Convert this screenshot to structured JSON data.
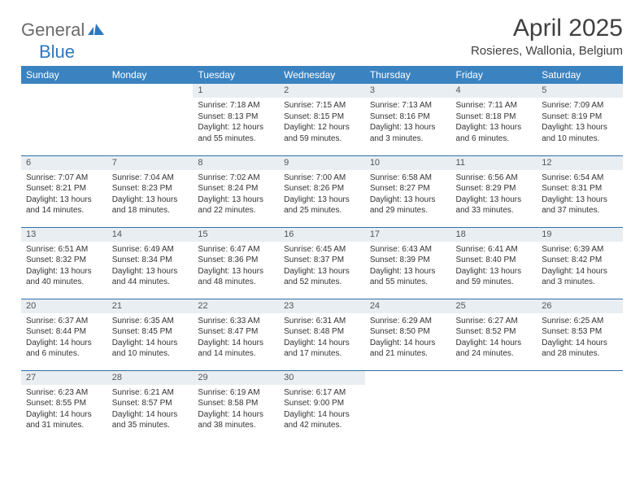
{
  "brand": {
    "part1": "General",
    "part2": "Blue"
  },
  "title": "April 2025",
  "location": "Rosieres, Wallonia, Belgium",
  "colors": {
    "header_bg": "#3b83c0",
    "header_text": "#ffffff",
    "daynum_bg": "#e9eef2",
    "row_border": "#2f6fa6",
    "brand_gray": "#6b6b6b",
    "brand_blue": "#2f78bd"
  },
  "day_headers": [
    "Sunday",
    "Monday",
    "Tuesday",
    "Wednesday",
    "Thursday",
    "Friday",
    "Saturday"
  ],
  "weeks": [
    [
      {
        "n": "",
        "lines": []
      },
      {
        "n": "",
        "lines": []
      },
      {
        "n": "1",
        "lines": [
          "Sunrise: 7:18 AM",
          "Sunset: 8:13 PM",
          "Daylight: 12 hours",
          "and 55 minutes."
        ]
      },
      {
        "n": "2",
        "lines": [
          "Sunrise: 7:15 AM",
          "Sunset: 8:15 PM",
          "Daylight: 12 hours",
          "and 59 minutes."
        ]
      },
      {
        "n": "3",
        "lines": [
          "Sunrise: 7:13 AM",
          "Sunset: 8:16 PM",
          "Daylight: 13 hours",
          "and 3 minutes."
        ]
      },
      {
        "n": "4",
        "lines": [
          "Sunrise: 7:11 AM",
          "Sunset: 8:18 PM",
          "Daylight: 13 hours",
          "and 6 minutes."
        ]
      },
      {
        "n": "5",
        "lines": [
          "Sunrise: 7:09 AM",
          "Sunset: 8:19 PM",
          "Daylight: 13 hours",
          "and 10 minutes."
        ]
      }
    ],
    [
      {
        "n": "6",
        "lines": [
          "Sunrise: 7:07 AM",
          "Sunset: 8:21 PM",
          "Daylight: 13 hours",
          "and 14 minutes."
        ]
      },
      {
        "n": "7",
        "lines": [
          "Sunrise: 7:04 AM",
          "Sunset: 8:23 PM",
          "Daylight: 13 hours",
          "and 18 minutes."
        ]
      },
      {
        "n": "8",
        "lines": [
          "Sunrise: 7:02 AM",
          "Sunset: 8:24 PM",
          "Daylight: 13 hours",
          "and 22 minutes."
        ]
      },
      {
        "n": "9",
        "lines": [
          "Sunrise: 7:00 AM",
          "Sunset: 8:26 PM",
          "Daylight: 13 hours",
          "and 25 minutes."
        ]
      },
      {
        "n": "10",
        "lines": [
          "Sunrise: 6:58 AM",
          "Sunset: 8:27 PM",
          "Daylight: 13 hours",
          "and 29 minutes."
        ]
      },
      {
        "n": "11",
        "lines": [
          "Sunrise: 6:56 AM",
          "Sunset: 8:29 PM",
          "Daylight: 13 hours",
          "and 33 minutes."
        ]
      },
      {
        "n": "12",
        "lines": [
          "Sunrise: 6:54 AM",
          "Sunset: 8:31 PM",
          "Daylight: 13 hours",
          "and 37 minutes."
        ]
      }
    ],
    [
      {
        "n": "13",
        "lines": [
          "Sunrise: 6:51 AM",
          "Sunset: 8:32 PM",
          "Daylight: 13 hours",
          "and 40 minutes."
        ]
      },
      {
        "n": "14",
        "lines": [
          "Sunrise: 6:49 AM",
          "Sunset: 8:34 PM",
          "Daylight: 13 hours",
          "and 44 minutes."
        ]
      },
      {
        "n": "15",
        "lines": [
          "Sunrise: 6:47 AM",
          "Sunset: 8:36 PM",
          "Daylight: 13 hours",
          "and 48 minutes."
        ]
      },
      {
        "n": "16",
        "lines": [
          "Sunrise: 6:45 AM",
          "Sunset: 8:37 PM",
          "Daylight: 13 hours",
          "and 52 minutes."
        ]
      },
      {
        "n": "17",
        "lines": [
          "Sunrise: 6:43 AM",
          "Sunset: 8:39 PM",
          "Daylight: 13 hours",
          "and 55 minutes."
        ]
      },
      {
        "n": "18",
        "lines": [
          "Sunrise: 6:41 AM",
          "Sunset: 8:40 PM",
          "Daylight: 13 hours",
          "and 59 minutes."
        ]
      },
      {
        "n": "19",
        "lines": [
          "Sunrise: 6:39 AM",
          "Sunset: 8:42 PM",
          "Daylight: 14 hours",
          "and 3 minutes."
        ]
      }
    ],
    [
      {
        "n": "20",
        "lines": [
          "Sunrise: 6:37 AM",
          "Sunset: 8:44 PM",
          "Daylight: 14 hours",
          "and 6 minutes."
        ]
      },
      {
        "n": "21",
        "lines": [
          "Sunrise: 6:35 AM",
          "Sunset: 8:45 PM",
          "Daylight: 14 hours",
          "and 10 minutes."
        ]
      },
      {
        "n": "22",
        "lines": [
          "Sunrise: 6:33 AM",
          "Sunset: 8:47 PM",
          "Daylight: 14 hours",
          "and 14 minutes."
        ]
      },
      {
        "n": "23",
        "lines": [
          "Sunrise: 6:31 AM",
          "Sunset: 8:48 PM",
          "Daylight: 14 hours",
          "and 17 minutes."
        ]
      },
      {
        "n": "24",
        "lines": [
          "Sunrise: 6:29 AM",
          "Sunset: 8:50 PM",
          "Daylight: 14 hours",
          "and 21 minutes."
        ]
      },
      {
        "n": "25",
        "lines": [
          "Sunrise: 6:27 AM",
          "Sunset: 8:52 PM",
          "Daylight: 14 hours",
          "and 24 minutes."
        ]
      },
      {
        "n": "26",
        "lines": [
          "Sunrise: 6:25 AM",
          "Sunset: 8:53 PM",
          "Daylight: 14 hours",
          "and 28 minutes."
        ]
      }
    ],
    [
      {
        "n": "27",
        "lines": [
          "Sunrise: 6:23 AM",
          "Sunset: 8:55 PM",
          "Daylight: 14 hours",
          "and 31 minutes."
        ]
      },
      {
        "n": "28",
        "lines": [
          "Sunrise: 6:21 AM",
          "Sunset: 8:57 PM",
          "Daylight: 14 hours",
          "and 35 minutes."
        ]
      },
      {
        "n": "29",
        "lines": [
          "Sunrise: 6:19 AM",
          "Sunset: 8:58 PM",
          "Daylight: 14 hours",
          "and 38 minutes."
        ]
      },
      {
        "n": "30",
        "lines": [
          "Sunrise: 6:17 AM",
          "Sunset: 9:00 PM",
          "Daylight: 14 hours",
          "and 42 minutes."
        ]
      },
      {
        "n": "",
        "lines": []
      },
      {
        "n": "",
        "lines": []
      },
      {
        "n": "",
        "lines": []
      }
    ]
  ]
}
